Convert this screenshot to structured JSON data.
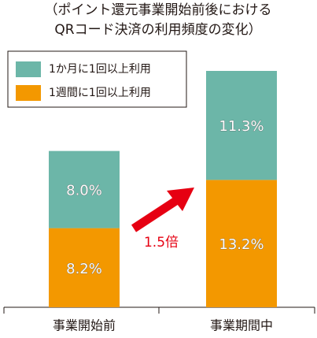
{
  "chart_data": {
    "type": "stacked-bar",
    "title": [
      "（ポイント還元事業開始前後における",
      "QRコード決済の利用頻度の変化）"
    ],
    "categories": [
      "事業開始前",
      "事業期間中"
    ],
    "series": [
      {
        "name": "1か月に1回以上利用",
        "color": "#6cb6a8",
        "values": [
          8.0,
          11.3
        ],
        "value_labels": [
          "8.0%",
          "11.3%"
        ]
      },
      {
        "name": "1週間に1回以上利用",
        "color": "#f39800",
        "values": [
          8.2,
          13.2
        ],
        "value_labels": [
          "8.2%",
          "13.2%"
        ]
      }
    ],
    "annotation": "1.5倍",
    "annotation_color": "#e60012"
  }
}
